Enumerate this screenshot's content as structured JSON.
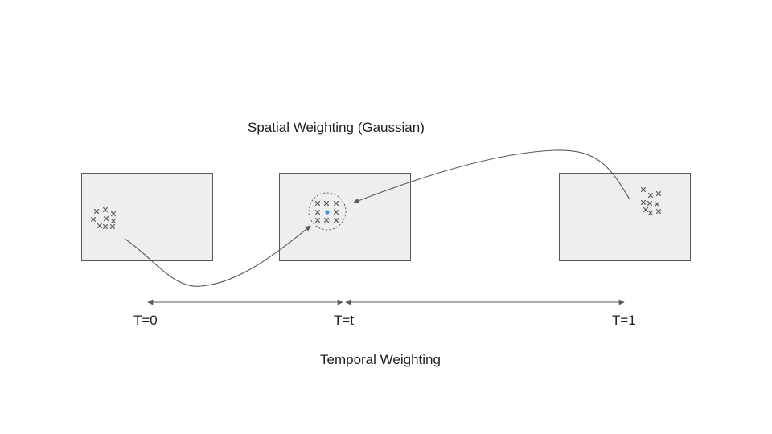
{
  "diagram": {
    "spatial_label": "Spatial Weighting (Gaussian)",
    "temporal_label": "Temporal Weighting",
    "time_labels": [
      "T=0",
      "T=t",
      "T=1"
    ],
    "frames": [
      "frame-t0",
      "frame-tt",
      "frame-t1"
    ],
    "colors": {
      "frame_fill": "#eeeeee",
      "stroke": "#595959",
      "center_point": "#4a90d9",
      "text": "#202124"
    }
  }
}
